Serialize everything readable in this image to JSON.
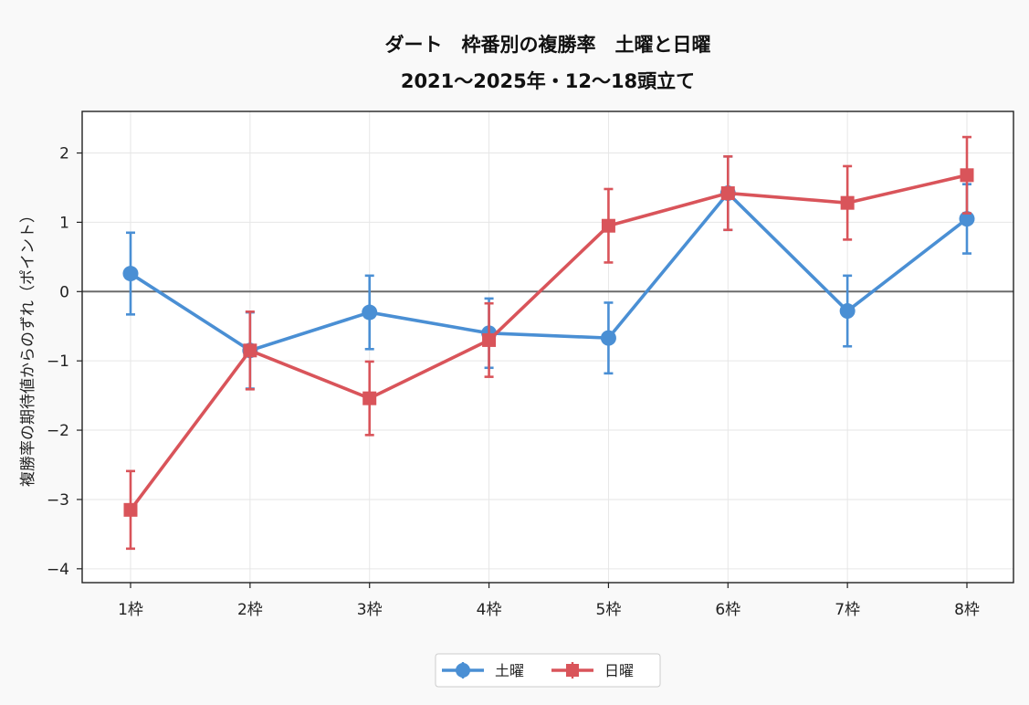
{
  "colors": {
    "background": "#f9f9f9",
    "plot_background": "#ffffff",
    "saturday": "#4a8fd4",
    "sunday": "#d9545a",
    "zero_line": "#6b6b6b",
    "grid": "#e6e6e6"
  },
  "chart_data": {
    "type": "line",
    "title": "ダート　枠番別の複勝率　土曜と日曜",
    "subtitle": "2021〜2025年・12〜18頭立て",
    "xlabel": "",
    "ylabel": "複勝率の期待値からのずれ（ポイント）",
    "categories": [
      "1枠",
      "2枠",
      "3枠",
      "4枠",
      "5枠",
      "6枠",
      "7枠",
      "8枠"
    ],
    "ylim": [
      -4.2,
      2.6
    ],
    "yticks": [
      -4,
      -3,
      -2,
      -1,
      0,
      1,
      2
    ],
    "ytick_labels": [
      "−4",
      "−3",
      "−2",
      "−1",
      "0",
      "1",
      "2"
    ],
    "grid": true,
    "reference_line": 0,
    "legend_position": "bottom-center",
    "series": [
      {
        "name": "土曜",
        "marker": "circle",
        "color": "#4a8fd4",
        "values": [
          0.26,
          -0.85,
          -0.3,
          -0.6,
          -0.67,
          1.42,
          -0.28,
          1.05
        ],
        "error": [
          0.59,
          0.55,
          0.53,
          0.5,
          0.51,
          0.53,
          0.51,
          0.5
        ]
      },
      {
        "name": "日曜",
        "marker": "square",
        "color": "#d9545a",
        "values": [
          -3.15,
          -0.85,
          -1.54,
          -0.7,
          0.95,
          1.42,
          1.28,
          1.68
        ],
        "error": [
          0.56,
          0.56,
          0.53,
          0.53,
          0.53,
          0.53,
          0.53,
          0.55
        ]
      }
    ]
  }
}
